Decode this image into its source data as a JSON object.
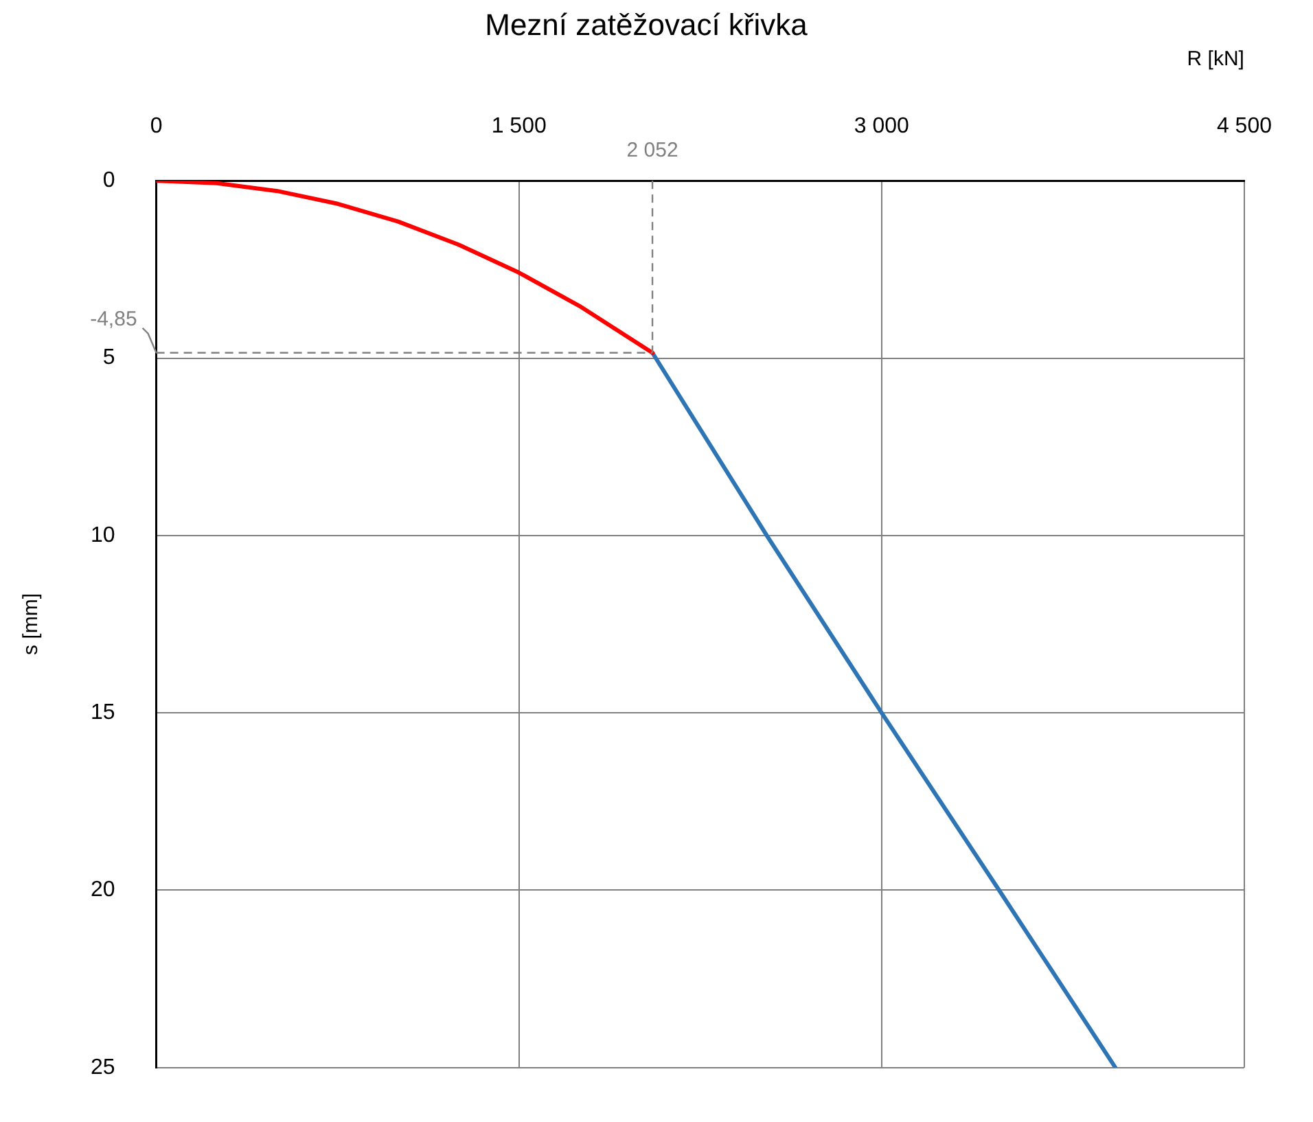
{
  "chart_data": {
    "type": "line",
    "title": "Mezní zatěžovací křivka",
    "xlabel": "R [kN]",
    "ylabel": "s [mm]",
    "xlim": [
      0,
      4500
    ],
    "xticks": [
      0,
      {
        "value": 1500,
        "label": "1 500"
      },
      {
        "value": 3000,
        "label": "3 000"
      },
      {
        "value": 4500,
        "label": "4 500"
      }
    ],
    "ylim": [
      25,
      0
    ],
    "yticks": [
      0,
      5,
      10,
      15,
      20,
      25
    ],
    "grid": true,
    "legend": false,
    "marker": "none",
    "line_style": "solid",
    "series": [
      {
        "color": "#ff0000",
        "x": [
          0,
          250,
          500,
          750,
          1000,
          1250,
          1500,
          1750,
          2052
        ],
        "values": [
          0,
          0.07,
          0.29,
          0.65,
          1.15,
          1.8,
          2.59,
          3.53,
          4.85
        ]
      },
      {
        "color": "#2e75b6",
        "x": [
          2052,
          2525,
          3000,
          3486,
          3967
        ],
        "values": [
          4.85,
          10,
          15,
          20,
          25
        ]
      }
    ],
    "ref_lines": [
      {
        "axis": "x",
        "value": 2052,
        "label": "2 052",
        "color": "#808080",
        "line_style": "dashed"
      },
      {
        "axis": "y",
        "value": 4.85,
        "color": "#808080",
        "line_style": "dashed"
      }
    ],
    "annotations": [
      "-4,85"
    ]
  }
}
